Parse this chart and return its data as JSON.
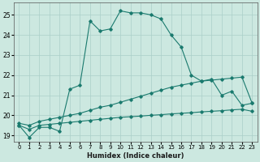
{
  "title": "",
  "xlabel": "Humidex (Indice chaleur)",
  "bg_color": "#cce8e0",
  "line_color": "#1a7a6e",
  "grid_color": "#aacfc8",
  "xlim": [
    -0.5,
    23.5
  ],
  "ylim": [
    18.7,
    25.6
  ],
  "yticks": [
    19,
    20,
    21,
    22,
    23,
    24,
    25
  ],
  "xticks": [
    0,
    1,
    2,
    3,
    4,
    5,
    6,
    7,
    8,
    9,
    10,
    11,
    12,
    13,
    14,
    15,
    16,
    17,
    18,
    19,
    20,
    21,
    22,
    23
  ],
  "series1_x": [
    0,
    1,
    2,
    3,
    4,
    5,
    6,
    7,
    8,
    9,
    10,
    11,
    12,
    13,
    14,
    15,
    16,
    17,
    18,
    19,
    20,
    21,
    22,
    23
  ],
  "series1_y": [
    19.5,
    18.9,
    19.4,
    19.4,
    19.2,
    21.3,
    21.5,
    24.7,
    24.2,
    24.3,
    25.2,
    25.1,
    25.1,
    25.0,
    24.8,
    24.0,
    23.4,
    22.0,
    21.7,
    21.8,
    21.0,
    21.2,
    20.5,
    20.6
  ],
  "series2_x": [
    0,
    1,
    2,
    3,
    4,
    5,
    6,
    7,
    8,
    9,
    10,
    11,
    12,
    13,
    14,
    15,
    16,
    17,
    18,
    19,
    20,
    21,
    22,
    23
  ],
  "series2_y": [
    19.6,
    19.5,
    19.7,
    19.8,
    19.9,
    20.0,
    20.1,
    20.25,
    20.4,
    20.5,
    20.65,
    20.8,
    20.95,
    21.1,
    21.25,
    21.4,
    21.5,
    21.6,
    21.7,
    21.75,
    21.8,
    21.85,
    21.9,
    20.6
  ],
  "series3_x": [
    0,
    1,
    2,
    3,
    4,
    5,
    6,
    7,
    8,
    9,
    10,
    11,
    12,
    13,
    14,
    15,
    16,
    17,
    18,
    19,
    20,
    21,
    22,
    23
  ],
  "series3_y": [
    19.5,
    19.3,
    19.5,
    19.55,
    19.6,
    19.65,
    19.7,
    19.75,
    19.8,
    19.85,
    19.9,
    19.93,
    19.96,
    20.0,
    20.03,
    20.07,
    20.1,
    20.13,
    20.17,
    20.2,
    20.23,
    20.27,
    20.3,
    20.2
  ]
}
